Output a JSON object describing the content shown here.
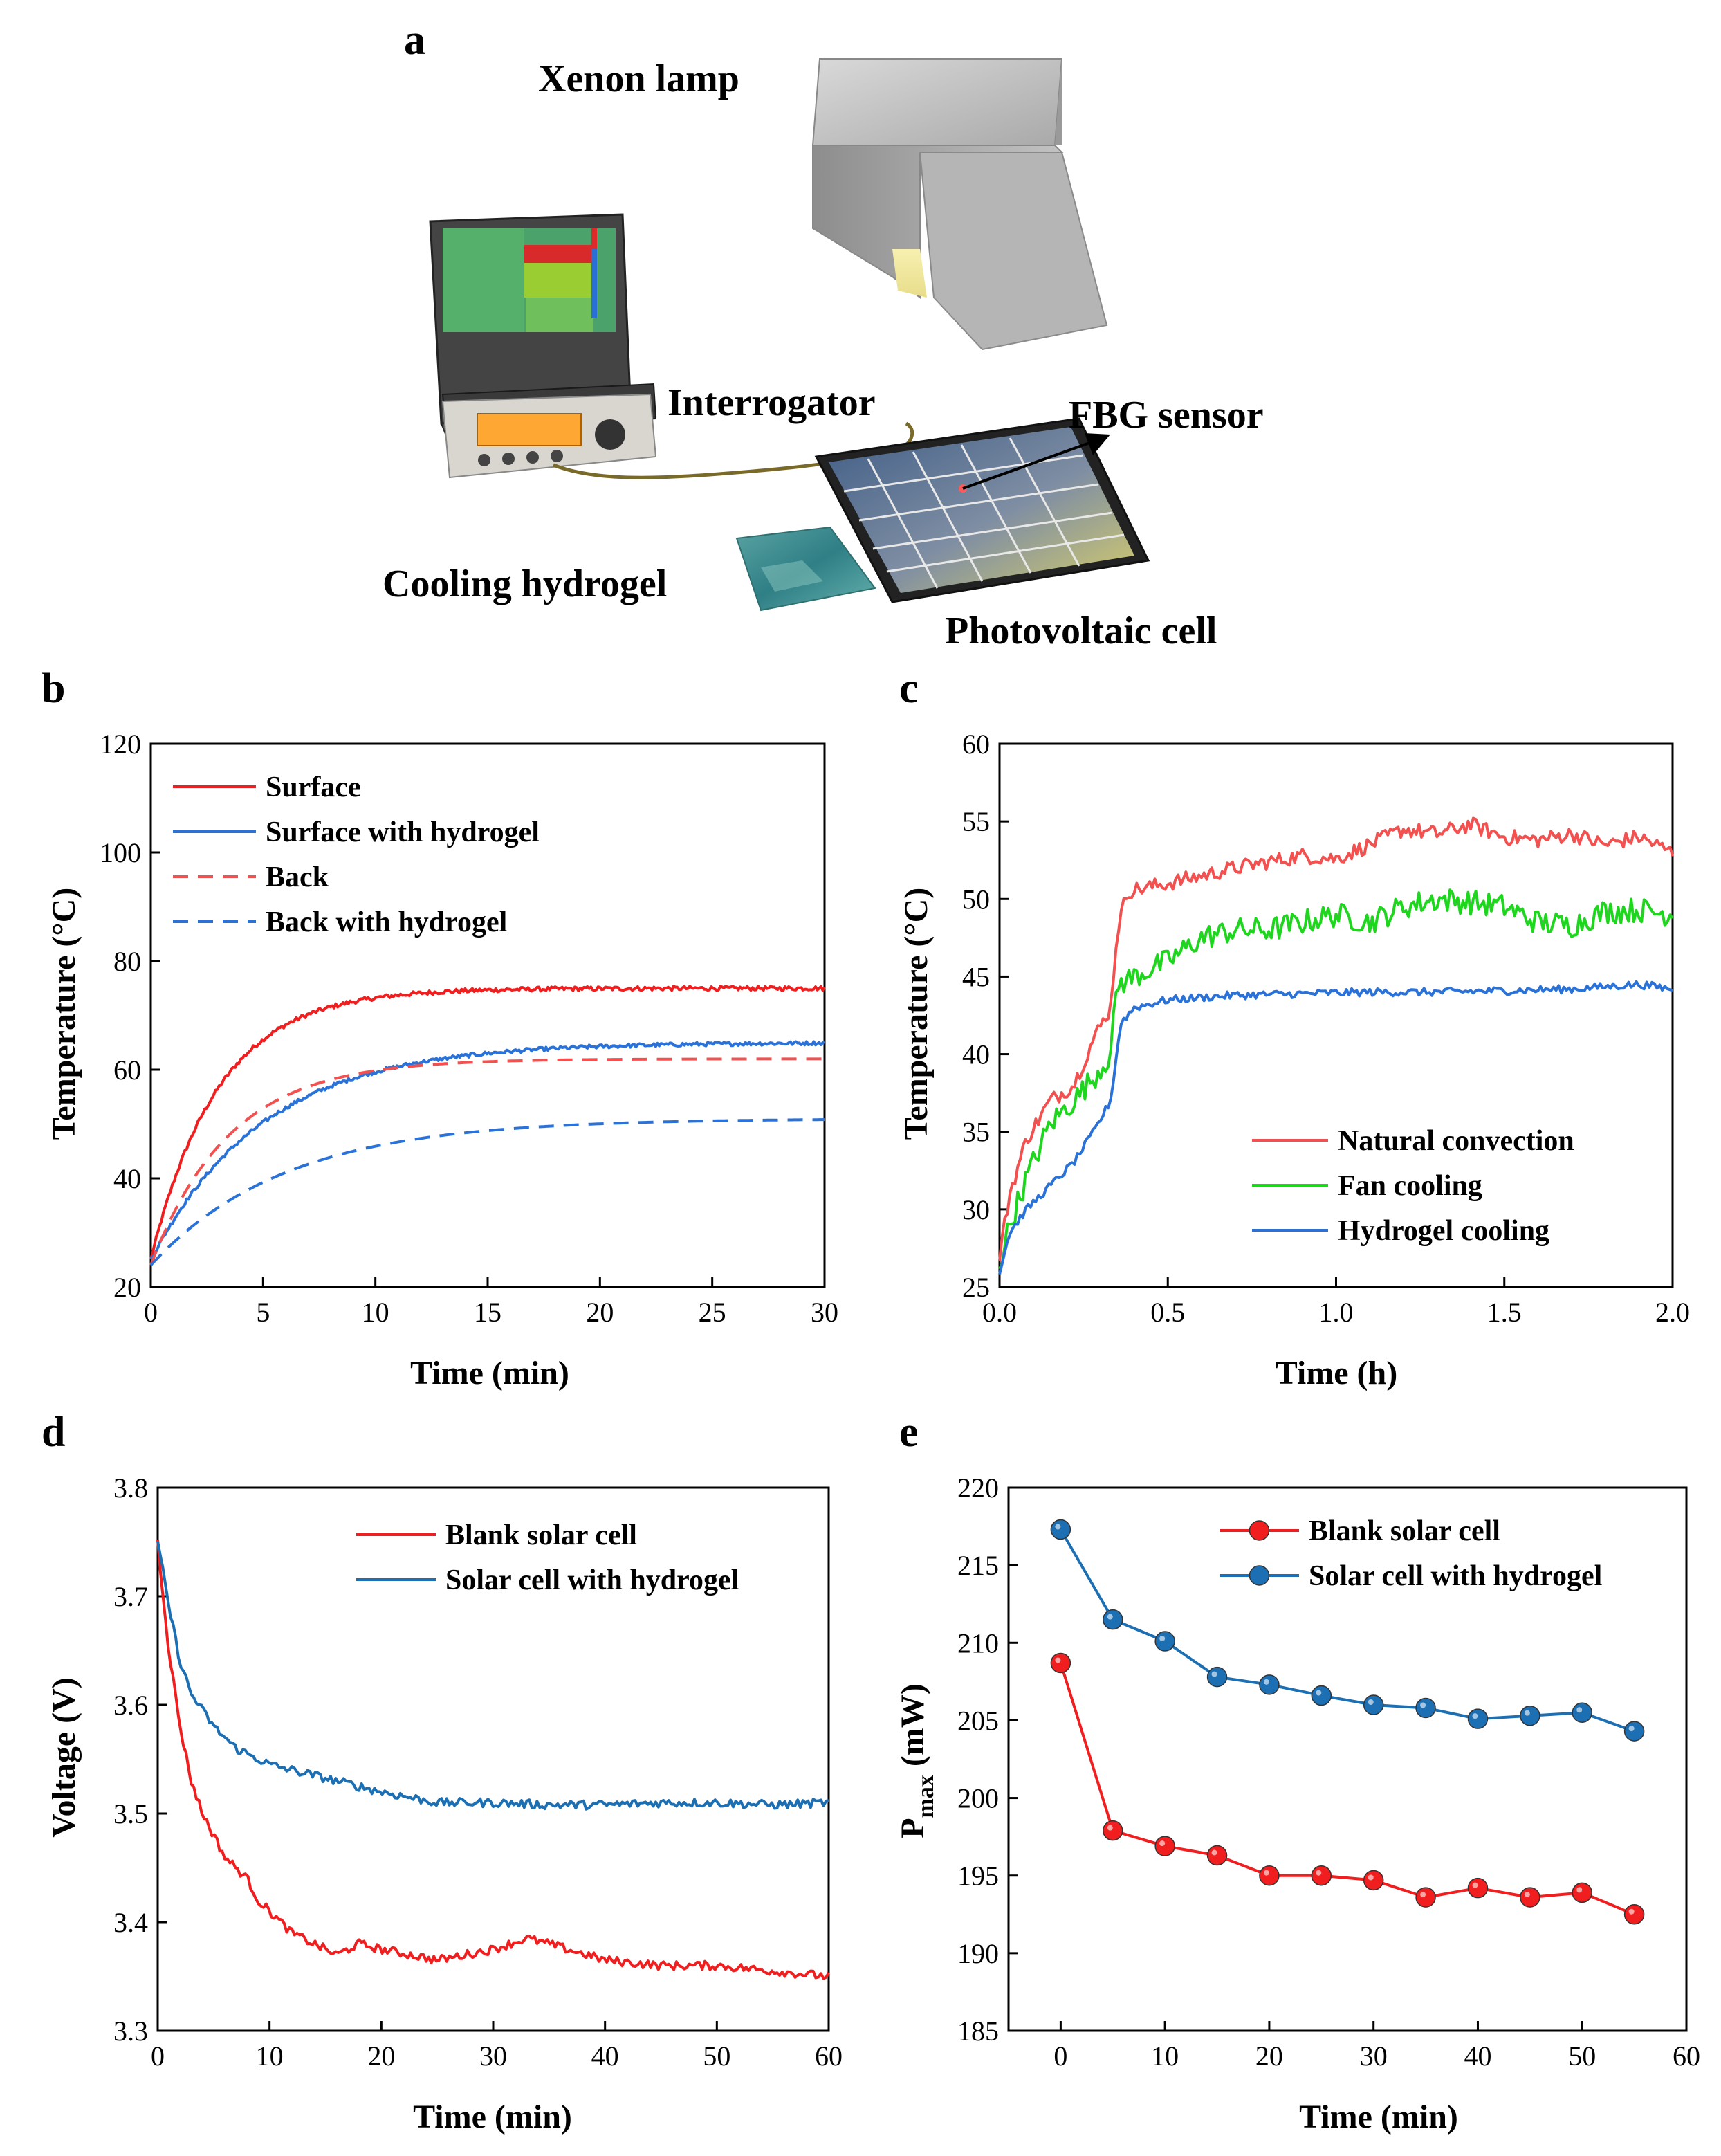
{
  "panel_labels": {
    "a": "a",
    "b": "b",
    "c": "c",
    "d": "d",
    "e": "e"
  },
  "scene": {
    "xenon_lamp": "Xenon lamp",
    "interrogator": "Interrogator",
    "fbg_sensor": "FBG sensor",
    "cooling_hydrogel": "Cooling hydrogel",
    "photovoltaic_cell": "Photovoltaic cell"
  },
  "colors": {
    "red": "#f01e1e",
    "blue": "#2a72d8",
    "green": "#1fd61f",
    "dblue": "#1d6fb3",
    "lightred": "#f35050"
  },
  "chart_data": [
    {
      "id": "b",
      "type": "line",
      "xlabel": "Time (min)",
      "ylabel": "Temperature (°C)",
      "xlim": [
        0,
        30
      ],
      "ylim": [
        20,
        120
      ],
      "xticks": [
        0,
        5,
        10,
        15,
        20,
        25,
        30
      ],
      "yticks": [
        20,
        40,
        60,
        80,
        100,
        120
      ],
      "legend_position": "top-left",
      "series": [
        {
          "name": "Surface",
          "style": "solid",
          "color": "#f01e1e",
          "start": 25,
          "end": 75,
          "tau": 3.0,
          "noise": 0.4
        },
        {
          "name": "Surface with hydrogel",
          "style": "solid",
          "color": "#2a72d8",
          "start": 25,
          "end": 65,
          "tau": 5.0,
          "noise": 0.35
        },
        {
          "name": "Back",
          "style": "dashed",
          "color": "#f35050",
          "start": 24,
          "end": 62,
          "tau": 3.5,
          "noise": 0
        },
        {
          "name": "Back with hydrogel",
          "style": "dashed",
          "color": "#2a72d8",
          "start": 24,
          "end": 51,
          "tau": 6.0,
          "noise": 0
        }
      ]
    },
    {
      "id": "c",
      "type": "line",
      "xlabel": "Time (h)",
      "ylabel": "Temperature (°C)",
      "xlim": [
        0,
        2.0
      ],
      "ylim": [
        25,
        60
      ],
      "xticks": [
        "0.0",
        "0.5",
        "1.0",
        "1.5",
        "2.0"
      ],
      "yticks": [
        25,
        30,
        35,
        40,
        45,
        50,
        55,
        60
      ],
      "legend_position": "bottom-right",
      "series": [
        {
          "name": "Natural convection",
          "color": "#f35050",
          "x": [
            0,
            0.03,
            0.08,
            0.15,
            0.22,
            0.28,
            0.33,
            0.35,
            0.38,
            0.5,
            0.7,
            0.9,
            1.0,
            1.1,
            1.2,
            1.3,
            1.4,
            1.5,
            1.6,
            1.7,
            1.8,
            1.9,
            2.0
          ],
          "y": [
            27,
            31,
            34.5,
            37,
            38,
            41,
            43,
            48,
            50.5,
            51,
            52,
            52.8,
            52.6,
            53.5,
            54.5,
            54.2,
            54.8,
            54,
            53.8,
            54.2,
            53.5,
            54,
            53
          ],
          "noise": 0.5
        },
        {
          "name": "Fan cooling",
          "color": "#1fd61f",
          "x": [
            0,
            0.03,
            0.08,
            0.15,
            0.22,
            0.28,
            0.33,
            0.35,
            0.4,
            0.5,
            0.6,
            0.7,
            0.8,
            0.9,
            1.0,
            1.1,
            1.2,
            1.3,
            1.4,
            1.5,
            1.6,
            1.7,
            1.8,
            1.9,
            2.0
          ],
          "y": [
            26.5,
            29,
            32,
            35.5,
            37,
            38.5,
            40,
            44.5,
            45,
            46,
            47.5,
            48,
            48,
            48.5,
            49,
            48.5,
            49.5,
            50,
            49.8,
            49.5,
            48.5,
            48.3,
            49.2,
            49.3,
            49
          ],
          "noise": 0.8
        },
        {
          "name": "Hydrogel cooling",
          "color": "#2a72d8",
          "x": [
            0,
            0.03,
            0.08,
            0.15,
            0.22,
            0.28,
            0.33,
            0.36,
            0.4,
            0.5,
            0.7,
            0.9,
            1.1,
            1.3,
            1.5,
            1.7,
            1.9,
            2.0
          ],
          "y": [
            26,
            28.5,
            30,
            31.5,
            33,
            35,
            37,
            42,
            43,
            43.5,
            43.8,
            43.9,
            44,
            44,
            44.1,
            44.2,
            44.5,
            44.2
          ],
          "noise": 0.25
        }
      ]
    },
    {
      "id": "d",
      "type": "line",
      "xlabel": "Time (min)",
      "ylabel": "Voltage (V)",
      "xlim": [
        0,
        60
      ],
      "ylim": [
        3.3,
        3.8
      ],
      "xticks": [
        0,
        10,
        20,
        30,
        40,
        50,
        60
      ],
      "yticks": [
        "3.3",
        "3.4",
        "3.5",
        "3.6",
        "3.7",
        "3.8"
      ],
      "legend_position": "top-right",
      "series": [
        {
          "name": "Blank solar cell",
          "color": "#f01e1e",
          "x": [
            0,
            1,
            2,
            3,
            4,
            5,
            6,
            7,
            8,
            9,
            10,
            12,
            14,
            16,
            18,
            20,
            25,
            30,
            33,
            35,
            40,
            45,
            50,
            55,
            60
          ],
          "y": [
            3.75,
            3.65,
            3.58,
            3.53,
            3.5,
            3.48,
            3.46,
            3.45,
            3.44,
            3.42,
            3.41,
            3.39,
            3.38,
            3.37,
            3.38,
            3.375,
            3.365,
            3.375,
            3.385,
            3.38,
            3.365,
            3.36,
            3.36,
            3.355,
            3.35
          ],
          "noise": 0.004
        },
        {
          "name": "Solar cell with hydrogel",
          "color": "#1d6fb3",
          "x": [
            0,
            1,
            2,
            3,
            4,
            5,
            6,
            7,
            8,
            9,
            10,
            12,
            14,
            16,
            18,
            20,
            25,
            30,
            35,
            40,
            45,
            50,
            55,
            60
          ],
          "y": [
            3.75,
            3.69,
            3.64,
            3.61,
            3.595,
            3.58,
            3.57,
            3.56,
            3.555,
            3.55,
            3.545,
            3.54,
            3.535,
            3.53,
            3.525,
            3.52,
            3.51,
            3.51,
            3.508,
            3.508,
            3.51,
            3.51,
            3.508,
            3.51
          ],
          "noise": 0.004
        }
      ]
    },
    {
      "id": "e",
      "type": "line",
      "xlabel": "Time (min)",
      "ylabel": "P",
      "ylabel_sub": "max",
      "ylabel_unit": " (mW)",
      "xlim": [
        -5,
        60
      ],
      "ylim": [
        185,
        220
      ],
      "xticks": [
        0,
        10,
        20,
        30,
        40,
        50,
        60
      ],
      "yticks": [
        185,
        190,
        195,
        200,
        205,
        210,
        215,
        220
      ],
      "legend_position": "top-right",
      "markers": true,
      "series": [
        {
          "name": "Blank solar cell",
          "color": "#f01e1e",
          "x": [
            0,
            5,
            10,
            15,
            20,
            25,
            30,
            35,
            40,
            45,
            50,
            55
          ],
          "y": [
            208.7,
            197.9,
            196.9,
            196.3,
            195.0,
            195.0,
            194.7,
            193.6,
            194.2,
            193.6,
            193.9,
            192.5
          ]
        },
        {
          "name": "Solar cell with hydrogel",
          "color": "#1d6fb3",
          "x": [
            0,
            5,
            10,
            15,
            20,
            25,
            30,
            35,
            40,
            45,
            50,
            55
          ],
          "y": [
            217.3,
            211.5,
            210.1,
            207.8,
            207.3,
            206.6,
            206.0,
            205.8,
            205.1,
            205.3,
            205.5,
            204.3
          ]
        }
      ]
    }
  ]
}
